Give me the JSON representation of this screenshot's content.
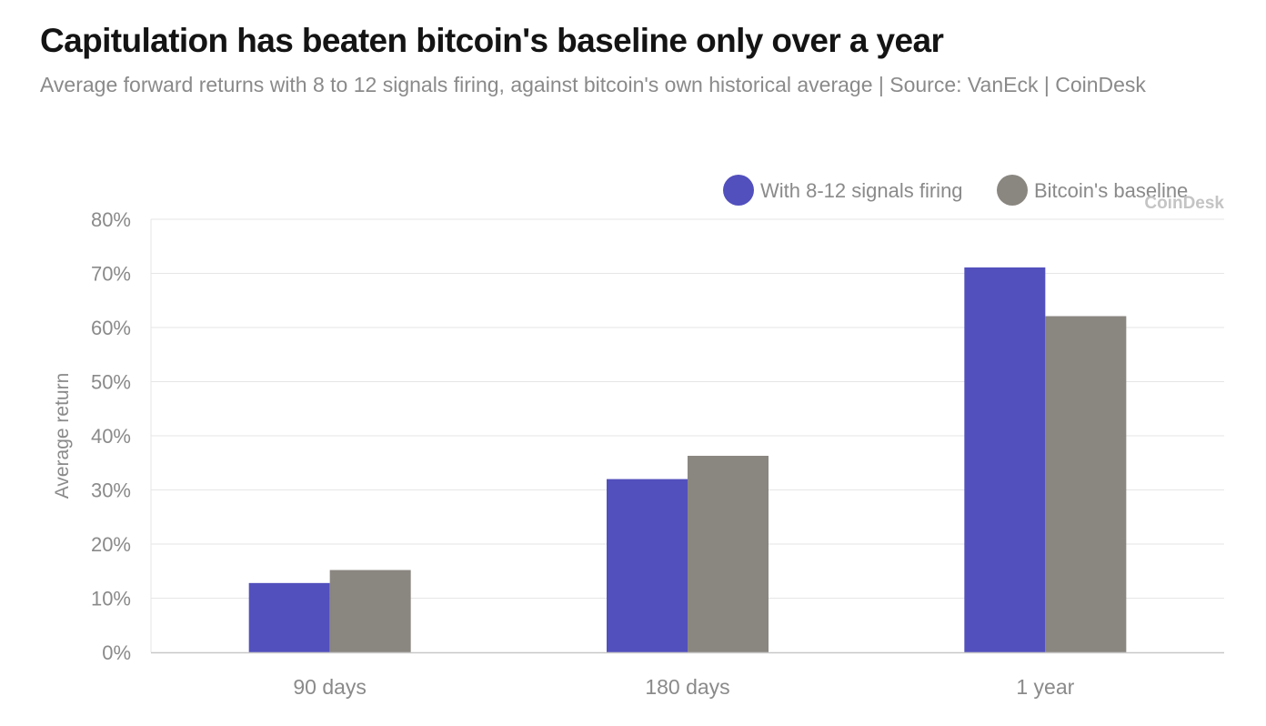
{
  "colors": {
    "series_primary": "#5250bd",
    "series_baseline": "#8a8680",
    "gridline": "#e6e6e6",
    "axis_text": "#8a8a8a",
    "title": "#141414",
    "watermark": "#c4c4c4"
  },
  "watermark": "CoinDesk",
  "chart_data": {
    "type": "bar",
    "title": "Capitulation has beaten bitcoin's baseline only over a year",
    "subtitle": "Average forward returns with 8 to 12 signals firing, against bitcoin's own historical average | Source: VanEck | CoinDesk",
    "xlabel": "",
    "ylabel": "Average return",
    "ylim": [
      0,
      80
    ],
    "yticks": [
      0,
      10,
      20,
      30,
      40,
      50,
      60,
      70,
      80
    ],
    "ytick_suffix": "%",
    "categories": [
      "90 days",
      "180 days",
      "1 year"
    ],
    "series": [
      {
        "name": "With 8-12 signals firing",
        "values": [
          12.8,
          32.0,
          71.1
        ]
      },
      {
        "name": "Bitcoin's baseline",
        "values": [
          15.2,
          36.3,
          62.1
        ]
      }
    ],
    "legend_position": "top-right",
    "grid": true
  }
}
